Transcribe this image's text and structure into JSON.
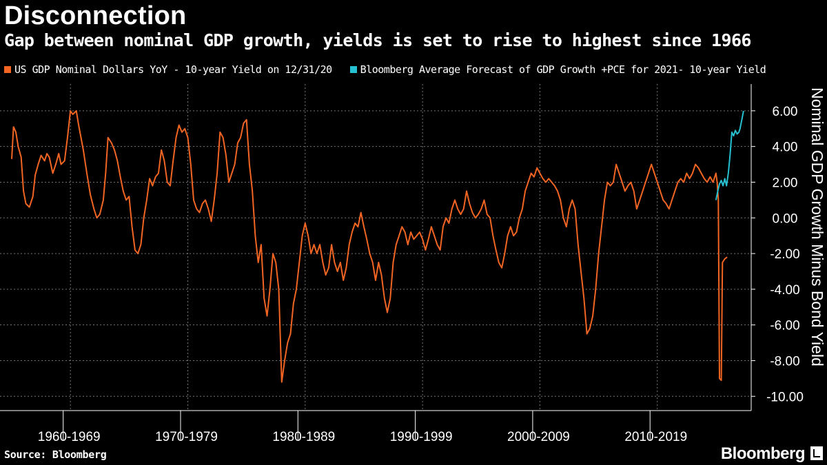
{
  "header": {
    "title": "Disconnection",
    "subtitle": "Gap between nominal GDP growth, yields is set to rise to highest since 1966"
  },
  "footer": {
    "source": "Source: Bloomberg",
    "brand": "Bloomberg"
  },
  "colors": {
    "background": "#000000",
    "series_actual": "#f26522",
    "series_forecast": "#25c1d0",
    "grid": "#777777"
  },
  "chart_data": {
    "type": "line",
    "ylabel": "Nominal GDP Growth Minus Bond Yield",
    "ylim": [
      -10.8,
      7.5
    ],
    "yticks": [
      "6.00",
      "4.00",
      "2.00",
      "0.00",
      "-2.00",
      "-4.00",
      "-6.00",
      "-8.00",
      "-10.00"
    ],
    "ytick_values": [
      6,
      4,
      2,
      0,
      -2,
      -4,
      -6,
      -8,
      -10
    ],
    "xlim": [
      1959.0,
      2023.0
    ],
    "xticks": [
      "1960-1969",
      "1970-1979",
      "1980-1989",
      "1990-1999",
      "2000-2009",
      "2010-2019"
    ],
    "x_decade_boundaries": [
      1965,
      1975,
      1985,
      1995,
      2005,
      2015
    ],
    "x_separators": [
      1964.5,
      1974.5,
      1984.5,
      1994.5,
      2004.5,
      2014.5
    ],
    "grid": true,
    "legend_placement": "top-left",
    "series": [
      {
        "name": "US GDP Nominal Dollars YoY - 10-year Yield on 12/31/20",
        "color": "#f26522",
        "points": [
          [
            1960.0,
            3.3
          ],
          [
            1960.15,
            5.1
          ],
          [
            1960.35,
            4.8
          ],
          [
            1960.55,
            4.0
          ],
          [
            1960.8,
            3.4
          ],
          [
            1961.0,
            1.5
          ],
          [
            1961.2,
            0.8
          ],
          [
            1961.5,
            0.6
          ],
          [
            1961.8,
            1.2
          ],
          [
            1962.0,
            2.4
          ],
          [
            1962.25,
            3.0
          ],
          [
            1962.5,
            3.5
          ],
          [
            1962.8,
            3.2
          ],
          [
            1963.0,
            3.6
          ],
          [
            1963.2,
            3.4
          ],
          [
            1963.5,
            2.5
          ],
          [
            1963.75,
            3.0
          ],
          [
            1964.0,
            3.6
          ],
          [
            1964.2,
            3.0
          ],
          [
            1964.5,
            3.2
          ],
          [
            1964.75,
            4.5
          ],
          [
            1965.0,
            6.0
          ],
          [
            1965.2,
            5.8
          ],
          [
            1965.5,
            6.0
          ],
          [
            1965.7,
            5.2
          ],
          [
            1965.9,
            4.5
          ],
          [
            1966.1,
            3.8
          ],
          [
            1966.4,
            2.5
          ],
          [
            1966.7,
            1.3
          ],
          [
            1967.0,
            0.5
          ],
          [
            1967.25,
            0.0
          ],
          [
            1967.5,
            0.2
          ],
          [
            1967.8,
            1.0
          ],
          [
            1968.0,
            2.5
          ],
          [
            1968.2,
            4.5
          ],
          [
            1968.5,
            4.2
          ],
          [
            1968.75,
            3.8
          ],
          [
            1969.0,
            3.2
          ],
          [
            1969.25,
            2.3
          ],
          [
            1969.5,
            1.5
          ],
          [
            1969.75,
            1.0
          ],
          [
            1970.0,
            1.2
          ],
          [
            1970.25,
            -0.5
          ],
          [
            1970.5,
            -1.8
          ],
          [
            1970.75,
            -2.0
          ],
          [
            1971.0,
            -1.5
          ],
          [
            1971.25,
            0.0
          ],
          [
            1971.5,
            1.0
          ],
          [
            1971.75,
            2.2
          ],
          [
            1972.0,
            1.8
          ],
          [
            1972.25,
            2.3
          ],
          [
            1972.5,
            2.5
          ],
          [
            1972.75,
            3.8
          ],
          [
            1973.0,
            3.2
          ],
          [
            1973.25,
            2.0
          ],
          [
            1973.5,
            1.8
          ],
          [
            1973.75,
            3.2
          ],
          [
            1974.0,
            4.5
          ],
          [
            1974.25,
            5.2
          ],
          [
            1974.5,
            4.8
          ],
          [
            1974.75,
            5.0
          ],
          [
            1975.0,
            4.5
          ],
          [
            1975.25,
            3.0
          ],
          [
            1975.5,
            1.0
          ],
          [
            1975.75,
            0.5
          ],
          [
            1976.0,
            0.3
          ],
          [
            1976.25,
            0.8
          ],
          [
            1976.5,
            1.0
          ],
          [
            1976.75,
            0.5
          ],
          [
            1977.0,
            -0.2
          ],
          [
            1977.25,
            1.0
          ],
          [
            1977.5,
            2.5
          ],
          [
            1977.75,
            4.8
          ],
          [
            1978.0,
            4.5
          ],
          [
            1978.25,
            3.5
          ],
          [
            1978.5,
            2.0
          ],
          [
            1978.75,
            2.5
          ],
          [
            1979.0,
            3.0
          ],
          [
            1979.25,
            4.2
          ],
          [
            1979.5,
            4.5
          ],
          [
            1979.75,
            5.3
          ],
          [
            1980.0,
            5.5
          ],
          [
            1980.25,
            3.0
          ],
          [
            1980.5,
            1.5
          ],
          [
            1980.75,
            -1.0
          ],
          [
            1981.0,
            -2.5
          ],
          [
            1981.25,
            -1.5
          ],
          [
            1981.5,
            -4.5
          ],
          [
            1981.75,
            -5.5
          ],
          [
            1982.0,
            -4.0
          ],
          [
            1982.25,
            -2.0
          ],
          [
            1982.5,
            -2.5
          ],
          [
            1982.75,
            -4.0
          ],
          [
            1983.0,
            -9.2
          ],
          [
            1983.25,
            -8.0
          ],
          [
            1983.5,
            -7.0
          ],
          [
            1983.75,
            -6.5
          ],
          [
            1984.0,
            -4.8
          ],
          [
            1984.25,
            -4.0
          ],
          [
            1984.5,
            -2.5
          ],
          [
            1984.75,
            -1.0
          ],
          [
            1985.0,
            -0.3
          ],
          [
            1985.25,
            -1.0
          ],
          [
            1985.5,
            -2.0
          ],
          [
            1985.75,
            -1.5
          ],
          [
            1986.0,
            -2.0
          ],
          [
            1986.25,
            -1.5
          ],
          [
            1986.5,
            -2.5
          ],
          [
            1986.75,
            -3.2
          ],
          [
            1987.0,
            -2.8
          ],
          [
            1987.25,
            -1.5
          ],
          [
            1987.5,
            -2.5
          ],
          [
            1987.75,
            -3.0
          ],
          [
            1988.0,
            -2.5
          ],
          [
            1988.25,
            -3.5
          ],
          [
            1988.5,
            -2.8
          ],
          [
            1988.75,
            -1.5
          ],
          [
            1989.0,
            -0.8
          ],
          [
            1989.25,
            -0.3
          ],
          [
            1989.5,
            -0.5
          ],
          [
            1989.75,
            0.3
          ],
          [
            1990.0,
            -0.5
          ],
          [
            1990.25,
            -1.2
          ],
          [
            1990.5,
            -2.0
          ],
          [
            1990.75,
            -2.5
          ],
          [
            1991.0,
            -3.5
          ],
          [
            1991.25,
            -2.5
          ],
          [
            1991.5,
            -3.2
          ],
          [
            1991.75,
            -4.5
          ],
          [
            1992.0,
            -5.3
          ],
          [
            1992.25,
            -4.5
          ],
          [
            1992.5,
            -2.5
          ],
          [
            1992.75,
            -1.5
          ],
          [
            1993.0,
            -1.0
          ],
          [
            1993.25,
            -0.5
          ],
          [
            1993.5,
            -0.8
          ],
          [
            1993.75,
            -1.5
          ],
          [
            1994.0,
            -0.8
          ],
          [
            1994.25,
            -1.2
          ],
          [
            1994.5,
            -1.0
          ],
          [
            1994.75,
            -0.8
          ],
          [
            1995.0,
            -1.2
          ],
          [
            1995.25,
            -1.8
          ],
          [
            1995.5,
            -1.2
          ],
          [
            1995.75,
            -0.5
          ],
          [
            1996.0,
            -1.0
          ],
          [
            1996.25,
            -1.5
          ],
          [
            1996.5,
            -1.8
          ],
          [
            1996.75,
            -0.5
          ],
          [
            1997.0,
            0.0
          ],
          [
            1997.25,
            -0.3
          ],
          [
            1997.5,
            0.5
          ],
          [
            1997.75,
            1.0
          ],
          [
            1998.0,
            0.5
          ],
          [
            1998.25,
            0.2
          ],
          [
            1998.5,
            0.5
          ],
          [
            1998.75,
            1.5
          ],
          [
            1999.0,
            0.8
          ],
          [
            1999.25,
            0.3
          ],
          [
            1999.5,
            0.0
          ],
          [
            1999.75,
            0.2
          ],
          [
            2000.0,
            0.5
          ],
          [
            2000.25,
            1.0
          ],
          [
            2000.5,
            0.2
          ],
          [
            2000.75,
            0.0
          ],
          [
            2001.0,
            -1.0
          ],
          [
            2001.25,
            -1.8
          ],
          [
            2001.5,
            -2.5
          ],
          [
            2001.75,
            -2.8
          ],
          [
            2002.0,
            -2.0
          ],
          [
            2002.25,
            -1.0
          ],
          [
            2002.5,
            -0.5
          ],
          [
            2002.75,
            -1.0
          ],
          [
            2003.0,
            -0.8
          ],
          [
            2003.25,
            0.0
          ],
          [
            2003.5,
            0.5
          ],
          [
            2003.75,
            1.5
          ],
          [
            2004.0,
            2.0
          ],
          [
            2004.25,
            2.5
          ],
          [
            2004.5,
            2.3
          ],
          [
            2004.75,
            2.8
          ],
          [
            2005.0,
            2.5
          ],
          [
            2005.25,
            2.2
          ],
          [
            2005.5,
            2.0
          ],
          [
            2005.75,
            2.2
          ],
          [
            2006.0,
            2.0
          ],
          [
            2006.25,
            1.8
          ],
          [
            2006.5,
            1.5
          ],
          [
            2006.75,
            1.0
          ],
          [
            2007.0,
            0.0
          ],
          [
            2007.25,
            -0.5
          ],
          [
            2007.5,
            0.5
          ],
          [
            2007.75,
            1.0
          ],
          [
            2008.0,
            0.5
          ],
          [
            2008.25,
            -1.5
          ],
          [
            2008.5,
            -3.0
          ],
          [
            2008.75,
            -4.5
          ],
          [
            2009.0,
            -6.5
          ],
          [
            2009.25,
            -6.2
          ],
          [
            2009.5,
            -5.5
          ],
          [
            2009.75,
            -4.0
          ],
          [
            2010.0,
            -2.0
          ],
          [
            2010.25,
            -0.5
          ],
          [
            2010.5,
            1.0
          ],
          [
            2010.75,
            2.0
          ],
          [
            2011.0,
            1.8
          ],
          [
            2011.25,
            2.0
          ],
          [
            2011.5,
            3.0
          ],
          [
            2011.75,
            2.5
          ],
          [
            2012.0,
            2.0
          ],
          [
            2012.25,
            1.5
          ],
          [
            2012.5,
            1.8
          ],
          [
            2012.75,
            2.0
          ],
          [
            2013.0,
            1.5
          ],
          [
            2013.25,
            0.5
          ],
          [
            2013.5,
            1.0
          ],
          [
            2013.75,
            1.5
          ],
          [
            2014.0,
            2.0
          ],
          [
            2014.25,
            2.5
          ],
          [
            2014.5,
            3.0
          ],
          [
            2014.75,
            2.5
          ],
          [
            2015.0,
            2.0
          ],
          [
            2015.25,
            1.5
          ],
          [
            2015.5,
            1.0
          ],
          [
            2015.75,
            0.8
          ],
          [
            2016.0,
            0.5
          ],
          [
            2016.25,
            1.0
          ],
          [
            2016.5,
            1.5
          ],
          [
            2016.75,
            2.0
          ],
          [
            2017.0,
            2.2
          ],
          [
            2017.25,
            2.0
          ],
          [
            2017.5,
            2.5
          ],
          [
            2017.75,
            2.2
          ],
          [
            2018.0,
            2.5
          ],
          [
            2018.25,
            3.0
          ],
          [
            2018.5,
            2.8
          ],
          [
            2018.75,
            2.5
          ],
          [
            2019.0,
            2.2
          ],
          [
            2019.25,
            2.0
          ],
          [
            2019.5,
            2.3
          ],
          [
            2019.75,
            2.0
          ],
          [
            2020.0,
            2.5
          ],
          [
            2020.1,
            2.0
          ],
          [
            2020.2,
            1.0
          ],
          [
            2020.3,
            -9.0
          ],
          [
            2020.45,
            -9.1
          ],
          [
            2020.55,
            -2.5
          ],
          [
            2020.75,
            -2.3
          ],
          [
            2020.95,
            -2.2
          ]
        ]
      },
      {
        "name": "Bloomberg Average Forecast of GDP Growth +PCE for 2021- 10-year Yield",
        "color": "#25c1d0",
        "points": [
          [
            2020.0,
            1.0
          ],
          [
            2020.15,
            1.5
          ],
          [
            2020.3,
            1.9
          ],
          [
            2020.45,
            2.1
          ],
          [
            2020.6,
            1.8
          ],
          [
            2020.75,
            2.2
          ],
          [
            2020.9,
            1.8
          ],
          [
            2021.05,
            2.5
          ],
          [
            2021.2,
            3.5
          ],
          [
            2021.35,
            4.8
          ],
          [
            2021.5,
            4.6
          ],
          [
            2021.65,
            4.9
          ],
          [
            2021.8,
            4.7
          ],
          [
            2021.95,
            4.8
          ],
          [
            2022.05,
            5.0
          ],
          [
            2022.2,
            5.5
          ],
          [
            2022.35,
            6.0
          ]
        ]
      }
    ]
  }
}
